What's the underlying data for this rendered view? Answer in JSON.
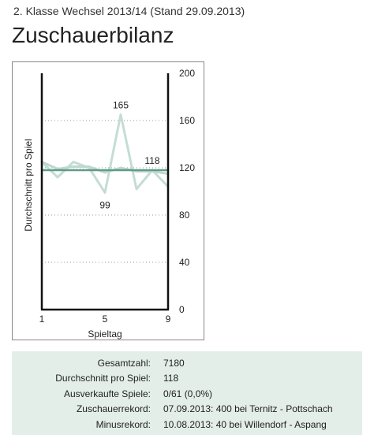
{
  "header": {
    "subtitle": "2. Klasse Wechsel 2013/14 (Stand 29.09.2013)",
    "title": "Zuschauerbilanz"
  },
  "chart_data": {
    "type": "line",
    "xlabel": "Spieltag",
    "ylabel": "Durchschnitt pro Spiel",
    "x_ticks": [
      "1",
      "5",
      "9"
    ],
    "y_ticks": [
      "200",
      "160",
      "120",
      "80",
      "40",
      "0"
    ],
    "xlim": [
      1,
      9
    ],
    "ylim": [
      0,
      200
    ],
    "y_axis_position": "right",
    "grid": "horizontal dotted",
    "x": [
      1,
      2,
      3,
      4,
      5,
      6,
      7,
      8,
      9
    ],
    "series": [
      {
        "values": [
          125,
          112,
          125,
          120,
          99,
          165,
          102,
          118,
          104
        ],
        "color": "#c4ddd4"
      },
      {
        "values": [
          125,
          119,
          121,
          121,
          116,
          120,
          117,
          117,
          115
        ],
        "color": "#bfd8cf"
      }
    ],
    "reference_line": {
      "value": 118,
      "color": "#5f9a8b"
    },
    "annotations": [
      {
        "x": 6,
        "y": 165,
        "text": "165"
      },
      {
        "x": 5,
        "y": 99,
        "text": "99"
      },
      {
        "x": 8,
        "y": 118,
        "text": "118"
      }
    ]
  },
  "stats": [
    {
      "label": "Gesamtzahl:",
      "value": "7180"
    },
    {
      "label": "Durchschnitt pro Spiel:",
      "value": "118"
    },
    {
      "label": "Ausverkaufte Spiele:",
      "value": "0/61 (0,0%)"
    },
    {
      "label": "Zuschauerrekord:",
      "value": "07.09.2013: 400 bei Ternitz - Pottschach"
    },
    {
      "label": "Minusrekord:",
      "value": "10.08.2013: 40 bei Willendorf - Aspang"
    }
  ]
}
